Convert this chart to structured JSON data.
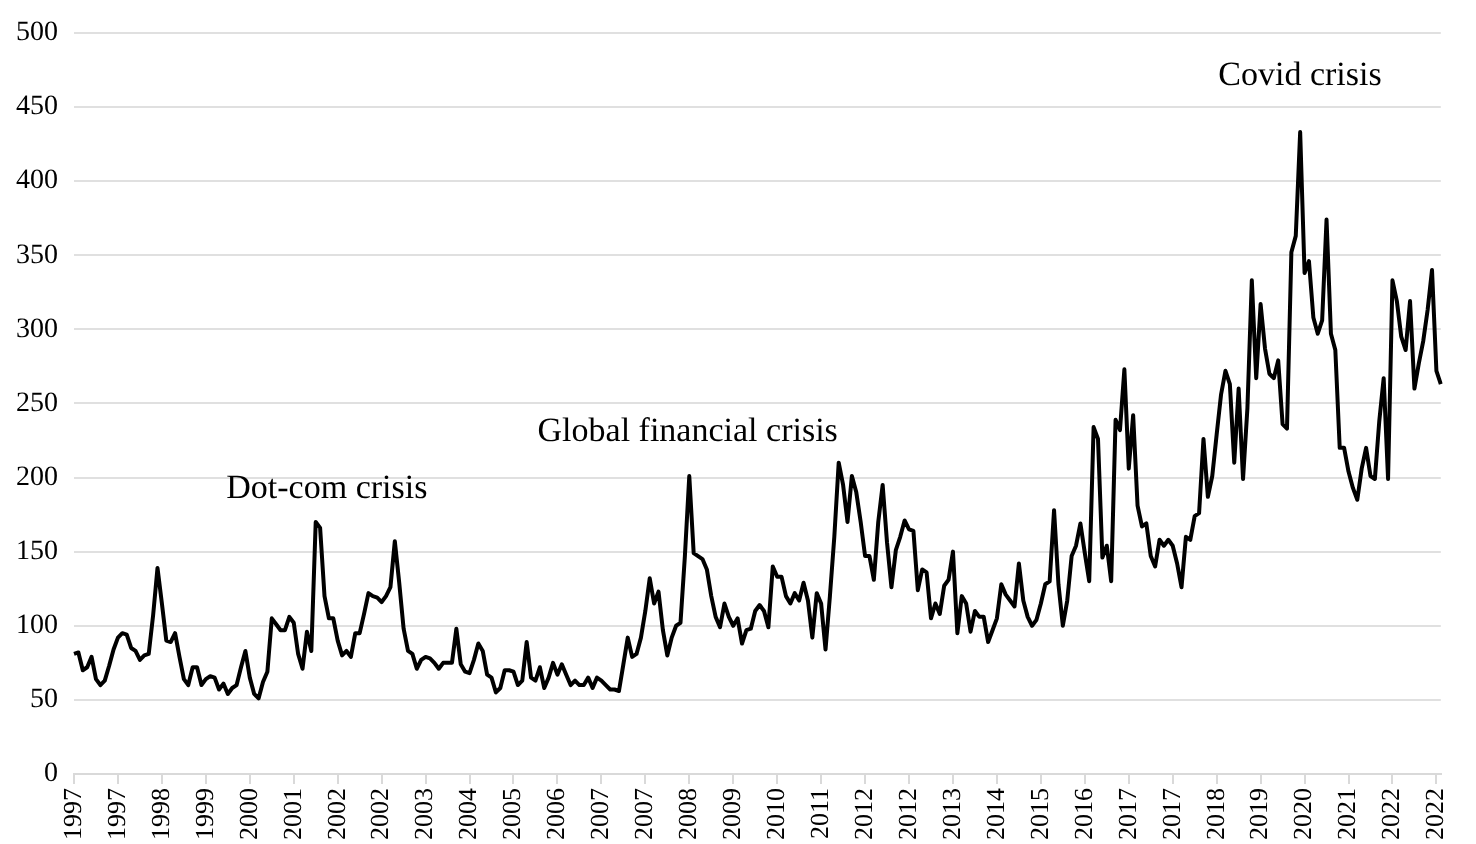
{
  "chart_data": {
    "type": "line",
    "color": "#000000",
    "grid": "y",
    "ylim": [
      0,
      500
    ],
    "yticks": [
      0,
      50,
      100,
      150,
      200,
      250,
      300,
      350,
      400,
      450,
      500
    ],
    "categories": [
      "1997",
      null,
      null,
      null,
      null,
      null,
      null,
      null,
      null,
      null,
      "1997",
      null,
      null,
      null,
      null,
      null,
      null,
      null,
      null,
      null,
      "1998",
      null,
      null,
      null,
      null,
      null,
      null,
      null,
      null,
      null,
      "1999",
      null,
      null,
      null,
      null,
      null,
      null,
      null,
      null,
      null,
      "2000",
      null,
      null,
      null,
      null,
      null,
      null,
      null,
      null,
      null,
      "2001",
      null,
      null,
      null,
      null,
      null,
      null,
      null,
      null,
      null,
      "2002",
      null,
      null,
      null,
      null,
      null,
      null,
      null,
      null,
      null,
      "2002",
      null,
      null,
      null,
      null,
      null,
      null,
      null,
      null,
      null,
      "2003",
      null,
      null,
      null,
      null,
      null,
      null,
      null,
      null,
      null,
      "2004",
      null,
      null,
      null,
      null,
      null,
      null,
      null,
      null,
      null,
      "2005",
      null,
      null,
      null,
      null,
      null,
      null,
      null,
      null,
      null,
      "2006",
      null,
      null,
      null,
      null,
      null,
      null,
      null,
      null,
      null,
      "2007",
      null,
      null,
      null,
      null,
      null,
      null,
      null,
      null,
      null,
      "2007",
      null,
      null,
      null,
      null,
      null,
      null,
      null,
      null,
      null,
      "2008",
      null,
      null,
      null,
      null,
      null,
      null,
      null,
      null,
      null,
      "2009",
      null,
      null,
      null,
      null,
      null,
      null,
      null,
      null,
      null,
      "2010",
      null,
      null,
      null,
      null,
      null,
      null,
      null,
      null,
      null,
      "2011",
      null,
      null,
      null,
      null,
      null,
      null,
      null,
      null,
      null,
      "2012",
      null,
      null,
      null,
      null,
      null,
      null,
      null,
      null,
      null,
      "2012",
      null,
      null,
      null,
      null,
      null,
      null,
      null,
      null,
      null,
      "2013",
      null,
      null,
      null,
      null,
      null,
      null,
      null,
      null,
      null,
      "2014",
      null,
      null,
      null,
      null,
      null,
      null,
      null,
      null,
      null,
      "2015",
      null,
      null,
      null,
      null,
      null,
      null,
      null,
      null,
      null,
      "2016",
      null,
      null,
      null,
      null,
      null,
      null,
      null,
      null,
      null,
      "2017",
      null,
      null,
      null,
      null,
      null,
      null,
      null,
      null,
      null,
      "2017",
      null,
      null,
      null,
      null,
      null,
      null,
      null,
      null,
      null,
      "2018",
      null,
      null,
      null,
      null,
      null,
      null,
      null,
      null,
      null,
      "2019",
      null,
      null,
      null,
      null,
      null,
      null,
      null,
      null,
      null,
      "2020",
      null,
      null,
      null,
      null,
      null,
      null,
      null,
      null,
      null,
      "2021",
      null,
      null,
      null,
      null,
      null,
      null,
      null,
      null,
      null,
      "2022",
      null,
      null,
      null,
      null,
      null,
      null,
      null,
      null,
      null,
      "2022",
      null
    ],
    "values": [
      81,
      82,
      70,
      72,
      79,
      64,
      60,
      63,
      73,
      84,
      92,
      95,
      94,
      85,
      83,
      77,
      80,
      81,
      107,
      139,
      115,
      90,
      89,
      95,
      79,
      64,
      60,
      72,
      72,
      60,
      64,
      66,
      65,
      57,
      61,
      54,
      58,
      60,
      72,
      83,
      65,
      54,
      51,
      62,
      69,
      105,
      101,
      97,
      97,
      106,
      102,
      81,
      71,
      96,
      83,
      170,
      166,
      120,
      105,
      105,
      90,
      80,
      83,
      79,
      95,
      95,
      108,
      122,
      120,
      119,
      116,
      120,
      126,
      157,
      129,
      98,
      83,
      81,
      71,
      77,
      79,
      78,
      75,
      71,
      75,
      75,
      75,
      98,
      74,
      69,
      68,
      77,
      88,
      83,
      67,
      65,
      55,
      58,
      70,
      70,
      69,
      60,
      63,
      89,
      65,
      63,
      72,
      58,
      65,
      75,
      67,
      74,
      67,
      60,
      63,
      60,
      60,
      65,
      58,
      65,
      63,
      60,
      57,
      57,
      56,
      74,
      92,
      79,
      81,
      92,
      110,
      132,
      115,
      123,
      97,
      80,
      92,
      100,
      102,
      147,
      201,
      149,
      147,
      145,
      138,
      120,
      106,
      99,
      115,
      106,
      100,
      105,
      88,
      97,
      98,
      110,
      114,
      110,
      99,
      140,
      133,
      133,
      120,
      115,
      122,
      117,
      129,
      117,
      92,
      122,
      115,
      84,
      120,
      160,
      210,
      195,
      170,
      201,
      190,
      170,
      147,
      147,
      131,
      170,
      195,
      156,
      126,
      151,
      160,
      171,
      165,
      164,
      124,
      138,
      136,
      105,
      115,
      108,
      127,
      131,
      150,
      95,
      120,
      115,
      96,
      110,
      106,
      106,
      89,
      97,
      105,
      128,
      121,
      117,
      113,
      142,
      117,
      106,
      100,
      104,
      115,
      128,
      130,
      178,
      128,
      100,
      117,
      147,
      154,
      169,
      149,
      130,
      234,
      226,
      146,
      154,
      130,
      239,
      232,
      273,
      206,
      242,
      181,
      167,
      169,
      147,
      140,
      158,
      154,
      158,
      154,
      142,
      126,
      160,
      158,
      174,
      176,
      226,
      187,
      201,
      229,
      256,
      272,
      263,
      210,
      260,
      199,
      247,
      333,
      267,
      317,
      287,
      270,
      267,
      279,
      236,
      233,
      352,
      363,
      433,
      338,
      346,
      308,
      297,
      306,
      374,
      297,
      286,
      220,
      220,
      204,
      193,
      185,
      206,
      220,
      201,
      199,
      238,
      267,
      199,
      333,
      319,
      295,
      286,
      319,
      260,
      277,
      292,
      313,
      340,
      272,
      263
    ],
    "annotations": [
      "Dot-com crisis",
      "Global financial crisis",
      "Covid crisis"
    ]
  }
}
